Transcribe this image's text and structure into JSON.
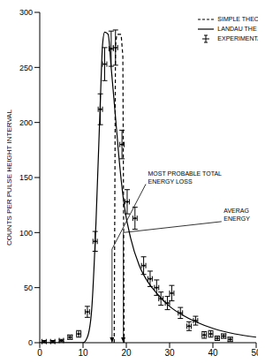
{
  "chart_data": {
    "type": "line",
    "y_label": "COUNTS PER PULSE HEIGHT INTERVAL",
    "xlim": [
      0,
      50
    ],
    "xticks": [
      0,
      10,
      20,
      30,
      40,
      50
    ],
    "ylim": [
      0,
      300
    ],
    "yticks": [
      0,
      50,
      100,
      150,
      200,
      250,
      300
    ],
    "legend": "upper right",
    "series": [
      {
        "name": "SIMPLE THEO",
        "type": "line",
        "line_style": "dashed",
        "color": "#000000",
        "x": [
          17.2,
          17.5,
          17.8,
          18.8,
          19.2,
          19.5
        ],
        "values": [
          0,
          270,
          280,
          280,
          260,
          0
        ]
      },
      {
        "name": "LANDAU THE",
        "type": "line",
        "line_style": "solid",
        "color": "#000000",
        "x": [
          0,
          10,
          11,
          12,
          13,
          14,
          14.5,
          15,
          15.8,
          16.5,
          17.5,
          18.5,
          19.5,
          21,
          23,
          25,
          27,
          30,
          33,
          36,
          40,
          45,
          50
        ],
        "values": [
          0,
          0,
          5,
          30,
          110,
          220,
          270,
          282,
          280,
          250,
          205,
          160,
          125,
          95,
          70,
          55,
          45,
          33,
          25,
          19,
          13,
          8,
          5
        ]
      },
      {
        "name": "EXPERIMENTA",
        "type": "scatter",
        "marker": "cross",
        "color": "#000000",
        "x": [
          1,
          3,
          5,
          7,
          9,
          11,
          12.8,
          14,
          15,
          16.5,
          17.5,
          19,
          20.2,
          22,
          24,
          25.5,
          27,
          28,
          29.5,
          30.5,
          32.5,
          34.5,
          36,
          38,
          39.5,
          41,
          42.5,
          44
        ],
        "values": [
          1,
          1,
          2,
          5,
          8,
          28,
          92,
          212,
          253,
          267,
          268,
          180,
          128,
          113,
          70,
          58,
          50,
          40,
          36,
          45,
          27,
          15,
          20,
          7,
          8,
          4,
          6,
          3
        ],
        "errors": [
          1,
          1,
          1,
          2,
          3,
          5,
          9,
          14,
          15,
          16,
          16,
          13,
          11,
          10,
          8,
          7,
          7,
          6,
          6,
          7,
          5,
          4,
          4,
          3,
          3,
          2,
          2,
          2
        ],
        "x_errors": [
          0.5,
          0.5,
          0.5,
          0.5,
          0.5,
          0.5,
          0.5,
          0.5,
          0.5,
          0.5,
          0.5,
          0.5,
          0.5,
          0.5,
          0.5,
          0.5,
          0.5,
          0.5,
          0.5,
          0.5,
          0.5,
          0.5,
          0.5,
          0.5,
          0.5,
          0.5,
          0.5,
          0.5
        ]
      }
    ],
    "annotations": [
      {
        "text": [
          "MOST PROBABLE TOTAL",
          "ENERGY LOSS"
        ],
        "x": 16.7,
        "y": 85
      },
      {
        "text": [
          "AVERAG",
          "ENERGY"
        ],
        "x": 19.3,
        "y": 100
      }
    ]
  }
}
